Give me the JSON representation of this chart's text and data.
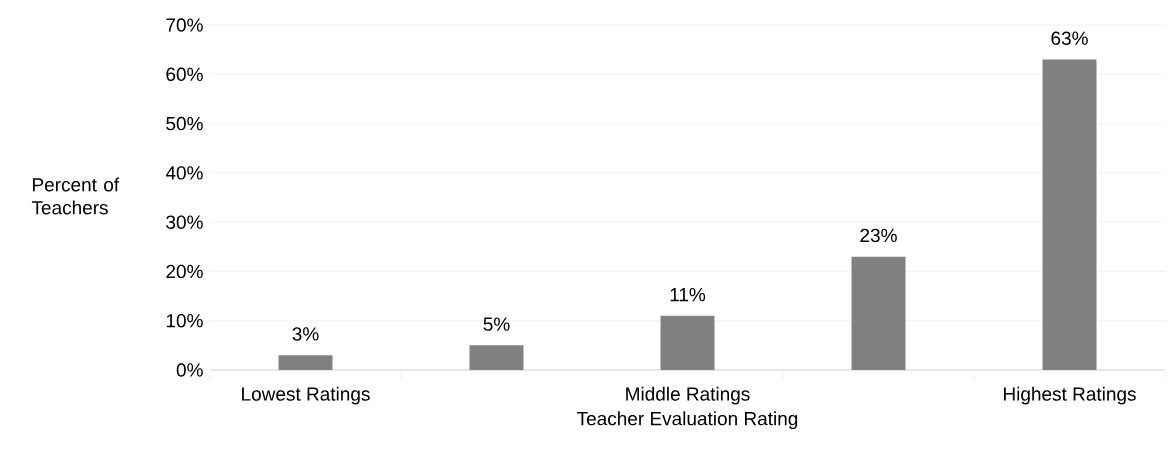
{
  "chart_data": {
    "type": "bar",
    "xlabel": "Teacher Evaluation Rating",
    "ylabel": "Percent of Teachers",
    "categories": [
      "Lowest Ratings",
      null,
      "Middle Ratings",
      null,
      "Highest Ratings"
    ],
    "values": [
      3,
      5,
      11,
      23,
      63
    ],
    "value_labels": [
      "3%",
      "5%",
      "11%",
      "23%",
      "63%"
    ],
    "color": "#808080",
    "ylim": [
      0,
      70
    ],
    "yticks": [
      {
        "value": 0,
        "label": "0%"
      },
      {
        "value": 10,
        "label": "10%"
      },
      {
        "value": 20,
        "label": "20%"
      },
      {
        "value": 30,
        "label": "30%"
      },
      {
        "value": 40,
        "label": "40%"
      },
      {
        "value": 50,
        "label": "50%"
      },
      {
        "value": 60,
        "label": "60%"
      },
      {
        "value": 70,
        "label": "70%"
      }
    ],
    "grid": "y"
  }
}
